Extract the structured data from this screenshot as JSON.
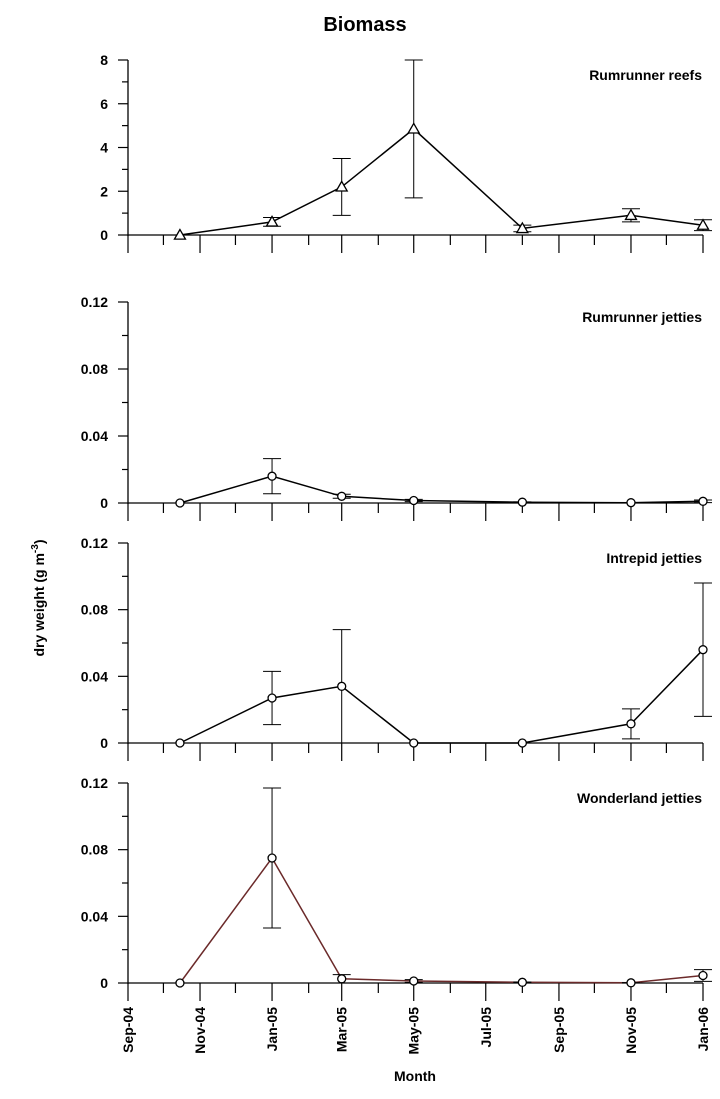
{
  "title": "Biomass",
  "xlabel": "Month",
  "ylabel": "dry weight (g m",
  "ylabel_sup": "-3",
  "ylabel_end": ")",
  "x_tick_labels": [
    "Sep-04",
    "Nov-04",
    "Jan-05",
    "Mar-05",
    "May-05",
    "Jul-05",
    "Sep-05",
    "Nov-05",
    "Jan-06"
  ],
  "colors": {
    "axis": "#000000",
    "series_default": "#000000",
    "series_wonderland": "#6b2a2a"
  },
  "chart_data": [
    {
      "type": "line",
      "name": "Rumrunner reefs",
      "marker": "triangle",
      "ylim": [
        0,
        8
      ],
      "yticks": [
        "0",
        "2",
        "4",
        "6",
        "8"
      ],
      "x": [
        "2004-10-15",
        "2005-01-01",
        "2005-03-01",
        "2005-05-01",
        "2005-08-01",
        "2005-11-01",
        "2006-01-01"
      ],
      "y": [
        0,
        0.6,
        2.2,
        4.85,
        0.3,
        0.9,
        0.45
      ],
      "error": [
        0,
        0.2,
        1.3,
        3.15,
        0.15,
        0.3,
        0.25
      ]
    },
    {
      "type": "line",
      "name": "Rumrunner jetties",
      "marker": "circle",
      "ylim": [
        0,
        0.12
      ],
      "yticks": [
        "0",
        "0.04",
        "0.08",
        "0.12"
      ],
      "x": [
        "2004-10-15",
        "2005-01-01",
        "2005-03-01",
        "2005-05-01",
        "2005-08-01",
        "2005-11-01",
        "2006-01-01"
      ],
      "y": [
        0,
        0.016,
        0.004,
        0.0015,
        0.0005,
        0.0002,
        0.001
      ],
      "error": [
        0,
        0.0105,
        0.0012,
        0.0007,
        0.0002,
        0.0001,
        0.0008
      ]
    },
    {
      "type": "line",
      "name": "Intrepid jetties",
      "marker": "circle",
      "ylim": [
        0,
        0.12
      ],
      "yticks": [
        "0",
        "0.04",
        "0.08",
        "0.12"
      ],
      "x": [
        "2004-10-15",
        "2005-01-01",
        "2005-03-01",
        "2005-05-01",
        "2005-08-01",
        "2005-11-01",
        "2006-01-01"
      ],
      "y": [
        0,
        0.027,
        0.034,
        0,
        0,
        0.0115,
        0.056
      ],
      "error": [
        0,
        0.016,
        0.034,
        0,
        0,
        0.009,
        0.04
      ]
    },
    {
      "type": "line",
      "name": "Wonderland jetties",
      "marker": "circle",
      "ylim": [
        0,
        0.12
      ],
      "yticks": [
        "0",
        "0.04",
        "0.08",
        "0.12"
      ],
      "x": [
        "2004-10-15",
        "2005-01-01",
        "2005-03-01",
        "2005-05-01",
        "2005-08-01",
        "2005-11-01",
        "2006-01-01"
      ],
      "y": [
        0,
        0.075,
        0.0025,
        0.0012,
        0.0004,
        0.0001,
        0.0045
      ],
      "error": [
        0,
        0.042,
        0.0025,
        0.0008,
        0.0002,
        0.0001,
        0.0035
      ]
    }
  ]
}
